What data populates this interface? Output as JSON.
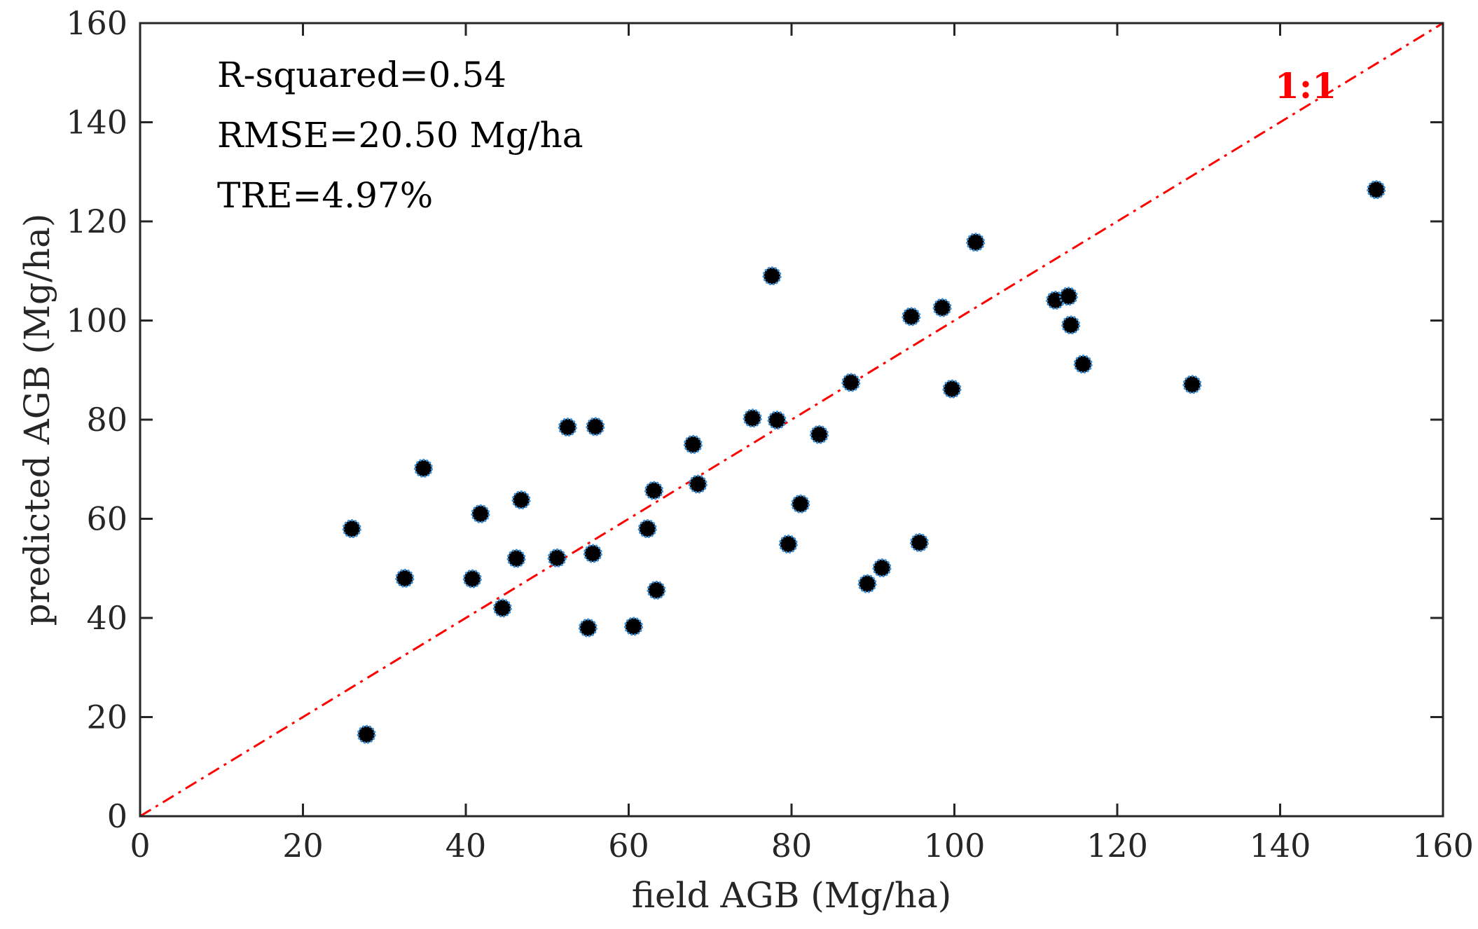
{
  "chart_data": {
    "type": "scatter",
    "title": "",
    "xlabel": "field AGB (Mg/ha)",
    "ylabel": "predicted AGB (Mg/ha)",
    "xlim": [
      0,
      160
    ],
    "ylim": [
      0,
      160
    ],
    "xticks": [
      "0",
      "20",
      "40",
      "60",
      "80",
      "100",
      "120",
      "140",
      "160"
    ],
    "yticks": [
      "0",
      "20",
      "40",
      "60",
      "80",
      "100",
      "120",
      "140",
      "160"
    ],
    "grid": false,
    "annotations": {
      "r_squared": "R-squared=0.54",
      "rmse": "RMSE=20.50 Mg/ha",
      "tre": "TRE=4.97%",
      "reference_line": "1:1"
    },
    "reference_line": {
      "x": [
        0,
        160
      ],
      "y": [
        0,
        160
      ],
      "color": "#ff0000",
      "style": "dash-dot"
    },
    "marker_fill": "#000000",
    "marker_edge": "#3a8fd6",
    "points": [
      {
        "x": 26.0,
        "y": 58.0
      },
      {
        "x": 27.8,
        "y": 16.5
      },
      {
        "x": 32.5,
        "y": 48.0
      },
      {
        "x": 34.8,
        "y": 70.2
      },
      {
        "x": 40.8,
        "y": 47.9
      },
      {
        "x": 41.8,
        "y": 61.0
      },
      {
        "x": 44.5,
        "y": 42.0
      },
      {
        "x": 46.2,
        "y": 52.0
      },
      {
        "x": 46.8,
        "y": 63.8
      },
      {
        "x": 51.2,
        "y": 52.1
      },
      {
        "x": 52.5,
        "y": 78.5
      },
      {
        "x": 55.0,
        "y": 38.0
      },
      {
        "x": 55.6,
        "y": 53.0
      },
      {
        "x": 55.9,
        "y": 78.6
      },
      {
        "x": 60.6,
        "y": 38.3
      },
      {
        "x": 62.3,
        "y": 58.0
      },
      {
        "x": 63.1,
        "y": 65.7
      },
      {
        "x": 63.4,
        "y": 45.6
      },
      {
        "x": 67.9,
        "y": 75.0
      },
      {
        "x": 68.5,
        "y": 67.0
      },
      {
        "x": 75.2,
        "y": 80.3
      },
      {
        "x": 77.6,
        "y": 109.0
      },
      {
        "x": 78.2,
        "y": 79.9
      },
      {
        "x": 79.6,
        "y": 54.9
      },
      {
        "x": 81.1,
        "y": 63.0
      },
      {
        "x": 83.4,
        "y": 77.0
      },
      {
        "x": 87.3,
        "y": 87.5
      },
      {
        "x": 89.3,
        "y": 46.9
      },
      {
        "x": 91.1,
        "y": 50.1
      },
      {
        "x": 94.7,
        "y": 100.8
      },
      {
        "x": 95.7,
        "y": 55.2
      },
      {
        "x": 98.5,
        "y": 102.6
      },
      {
        "x": 99.7,
        "y": 86.2
      },
      {
        "x": 102.6,
        "y": 115.8
      },
      {
        "x": 112.4,
        "y": 104.1
      },
      {
        "x": 114.0,
        "y": 104.9
      },
      {
        "x": 114.3,
        "y": 99.1
      },
      {
        "x": 115.8,
        "y": 91.2
      },
      {
        "x": 129.2,
        "y": 87.1
      },
      {
        "x": 151.8,
        "y": 126.4
      }
    ]
  }
}
